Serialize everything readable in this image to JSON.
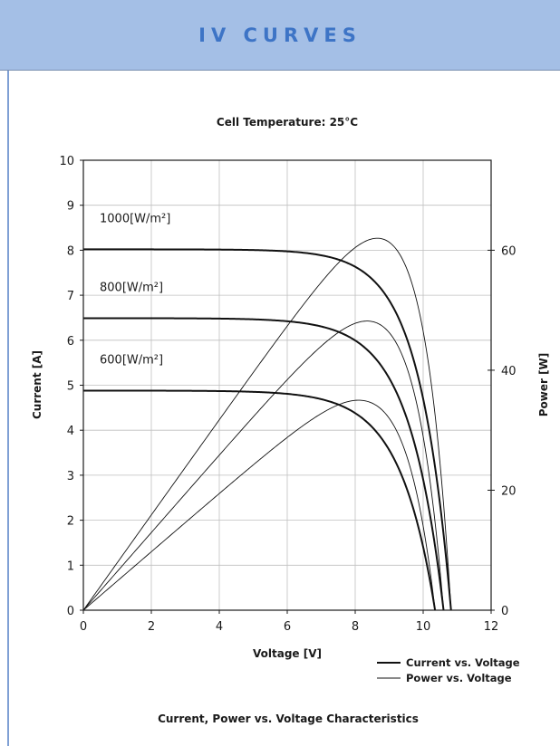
{
  "header": {
    "title": "IV CURVES"
  },
  "chart_data": {
    "type": "line",
    "title": "Cell Temperature:  25°C",
    "caption": "Current, Power vs. Voltage Characteristics",
    "xlabel": "Voltage [V]",
    "ylabel": "Current [A]",
    "y2label": "Power [W]",
    "xlim": [
      0,
      12
    ],
    "ylim": [
      0,
      10
    ],
    "y2lim": [
      0,
      75
    ],
    "x_ticks": [
      0,
      2,
      4,
      6,
      8,
      10,
      12
    ],
    "y_ticks": [
      0,
      1,
      2,
      3,
      4,
      5,
      6,
      7,
      8,
      9,
      10
    ],
    "y2_ticks": [
      0,
      20,
      40,
      60
    ],
    "grid": true,
    "legend_position": "bottom-right",
    "legend": [
      "Current vs. Voltage",
      "Power vs. Voltage"
    ],
    "series": [
      {
        "irradiance": "1000[W/m²]",
        "isc": 8.02,
        "voc": 10.82,
        "pmax": 62,
        "vmp": 8.65
      },
      {
        "irradiance": "800[W/m²]",
        "isc": 6.49,
        "voc": 10.6,
        "pmax": 48.2,
        "vmp": 8.35
      },
      {
        "irradiance": "600[W/m²]",
        "isc": 4.88,
        "voc": 10.35,
        "pmax": 35,
        "vmp": 8.1
      }
    ]
  }
}
